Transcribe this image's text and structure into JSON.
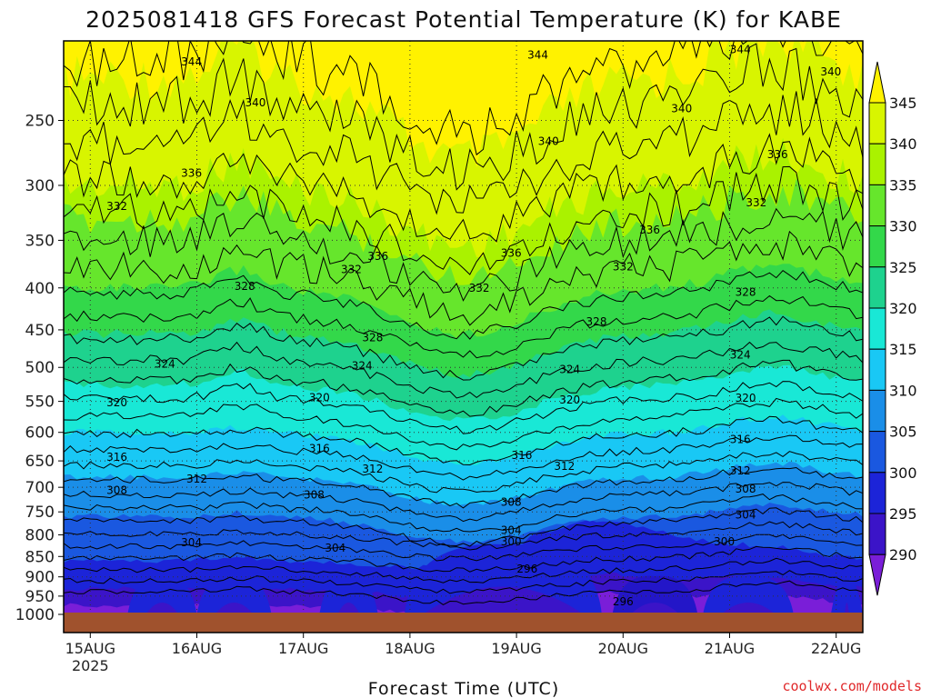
{
  "chart_data": {
    "type": "heatmap",
    "title": "2025081418 GFS Forecast Potential Temperature (K) for KABE",
    "xlabel": "Forecast Time (UTC)",
    "ylabel": "",
    "credit": "coolwx.com/models",
    "x_ticks": [
      {
        "label": "15AUG",
        "sub": "2025",
        "day": 15
      },
      {
        "label": "16AUG",
        "day": 16
      },
      {
        "label": "17AUG",
        "day": 17
      },
      {
        "label": "18AUG",
        "day": 18
      },
      {
        "label": "19AUG",
        "day": 19
      },
      {
        "label": "20AUG",
        "day": 20
      },
      {
        "label": "21AUG",
        "day": 21
      },
      {
        "label": "22AUG",
        "day": 22
      }
    ],
    "xlim_days": [
      14.75,
      22.25
    ],
    "y_ticks": [
      250,
      300,
      350,
      400,
      450,
      500,
      550,
      600,
      650,
      700,
      750,
      800,
      850,
      900,
      950,
      1000
    ],
    "ylim_hPa": [
      200,
      1000
    ],
    "y_scale": "log-pressure (inverted)",
    "colorbar": {
      "levels": [
        345,
        340,
        335,
        330,
        325,
        320,
        315,
        310,
        305,
        300,
        295,
        290
      ],
      "colors": [
        "#fff200",
        "#d8f500",
        "#aaf200",
        "#66e62c",
        "#33d84a",
        "#1ed28e",
        "#19e8d6",
        "#19c8f5",
        "#1a8ee8",
        "#1a58e0",
        "#1c24d8",
        "#3b14c8",
        "#7a1ed8"
      ]
    },
    "ground_color": "#a0522d",
    "contour_labels": [
      {
        "v": "344",
        "d": 15.95,
        "p": 212
      },
      {
        "v": "344",
        "d": 19.2,
        "p": 208
      },
      {
        "v": "344",
        "d": 21.1,
        "p": 205
      },
      {
        "v": "340",
        "d": 16.55,
        "p": 238
      },
      {
        "v": "340",
        "d": 19.3,
        "p": 265
      },
      {
        "v": "340",
        "d": 20.55,
        "p": 242
      },
      {
        "v": "340",
        "d": 21.95,
        "p": 218
      },
      {
        "v": "336",
        "d": 15.95,
        "p": 290
      },
      {
        "v": "336",
        "d": 17.7,
        "p": 366
      },
      {
        "v": "336",
        "d": 18.95,
        "p": 363
      },
      {
        "v": "336",
        "d": 20.25,
        "p": 340
      },
      {
        "v": "336",
        "d": 21.45,
        "p": 275
      },
      {
        "v": "332",
        "d": 15.25,
        "p": 318
      },
      {
        "v": "332",
        "d": 17.45,
        "p": 380
      },
      {
        "v": "332",
        "d": 18.65,
        "p": 400
      },
      {
        "v": "332",
        "d": 20.0,
        "p": 377
      },
      {
        "v": "332",
        "d": 21.25,
        "p": 315
      },
      {
        "v": "328",
        "d": 16.45,
        "p": 398
      },
      {
        "v": "328",
        "d": 17.65,
        "p": 460
      },
      {
        "v": "328",
        "d": 19.75,
        "p": 440
      },
      {
        "v": "328",
        "d": 21.15,
        "p": 405
      },
      {
        "v": "324",
        "d": 15.7,
        "p": 495
      },
      {
        "v": "324",
        "d": 17.55,
        "p": 498
      },
      {
        "v": "324",
        "d": 19.5,
        "p": 503
      },
      {
        "v": "324",
        "d": 21.1,
        "p": 483
      },
      {
        "v": "320",
        "d": 15.25,
        "p": 552
      },
      {
        "v": "320",
        "d": 17.15,
        "p": 544
      },
      {
        "v": "320",
        "d": 19.5,
        "p": 548
      },
      {
        "v": "320",
        "d": 21.15,
        "p": 545
      },
      {
        "v": "316",
        "d": 15.25,
        "p": 643
      },
      {
        "v": "316",
        "d": 17.15,
        "p": 628
      },
      {
        "v": "316",
        "d": 19.05,
        "p": 640
      },
      {
        "v": "316",
        "d": 21.1,
        "p": 612
      },
      {
        "v": "312",
        "d": 16.0,
        "p": 684
      },
      {
        "v": "312",
        "d": 17.65,
        "p": 665
      },
      {
        "v": "312",
        "d": 19.45,
        "p": 660
      },
      {
        "v": "312",
        "d": 21.1,
        "p": 668
      },
      {
        "v": "308",
        "d": 15.25,
        "p": 706
      },
      {
        "v": "308",
        "d": 17.1,
        "p": 715
      },
      {
        "v": "308",
        "d": 18.95,
        "p": 730
      },
      {
        "v": "308",
        "d": 21.15,
        "p": 703
      },
      {
        "v": "304",
        "d": 15.95,
        "p": 818
      },
      {
        "v": "304",
        "d": 17.3,
        "p": 830
      },
      {
        "v": "304",
        "d": 18.95,
        "p": 790
      },
      {
        "v": "304",
        "d": 21.15,
        "p": 756
      },
      {
        "v": "300",
        "d": 18.95,
        "p": 815
      },
      {
        "v": "300",
        "d": 20.95,
        "p": 815
      },
      {
        "v": "296",
        "d": 19.1,
        "p": 880
      },
      {
        "v": "296",
        "d": 20.0,
        "p": 965
      }
    ]
  }
}
